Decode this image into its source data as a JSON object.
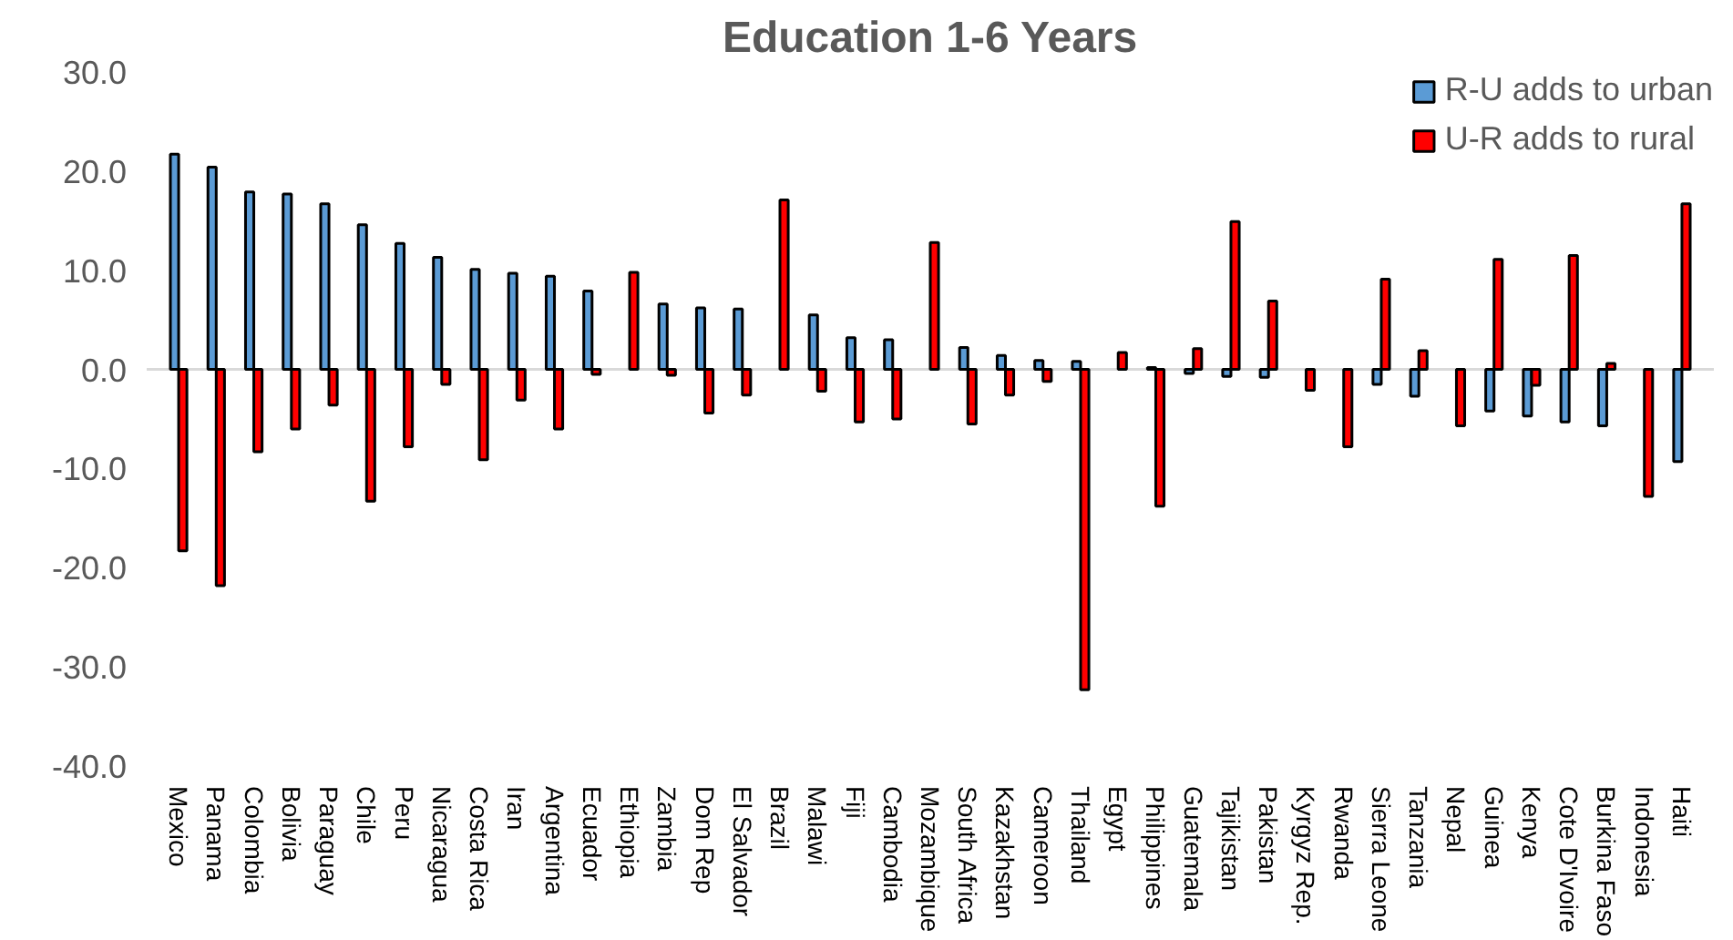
{
  "chart_data": {
    "type": "bar",
    "title": "Education 1-6 Years",
    "categories": [
      "Mexico",
      "Panama",
      "Colombia",
      "Bolivia",
      "Paraguay",
      "Chile",
      "Peru",
      "Nicaragua",
      "Costa Rica",
      "Iran",
      "Argentina",
      "Ecuador",
      "Ethiopia",
      "Zambia",
      "Dom Rep",
      "El Salvador",
      "Brazil",
      "Malawi",
      "Fiji",
      "Cambodia",
      "Mozambique",
      "South Africa",
      "Kazakhstan",
      "Cameroon",
      "Thailand",
      "Egypt",
      "Philippines",
      "Guatemala",
      "Tajikistan",
      "Pakistan",
      "Kyrgyz Rep.",
      "Rwanda",
      "Sierra Leone",
      "Tanzania",
      "Nepal",
      "Guinea",
      "Kenya",
      "Cote D'Ivoire",
      "Burkina Faso",
      "Indonesia",
      "Haiti"
    ],
    "series": [
      {
        "name": "R-U adds to urban",
        "color": "#5b9bd5",
        "values": [
          21.7,
          20.4,
          17.9,
          17.7,
          16.7,
          14.6,
          12.7,
          11.3,
          10.1,
          9.7,
          9.4,
          7.9,
          null,
          6.6,
          6.2,
          6.1,
          null,
          5.5,
          3.2,
          3.0,
          null,
          2.2,
          1.4,
          0.9,
          0.8,
          null,
          0.2,
          -0.4,
          -0.7,
          -0.8,
          null,
          null,
          -1.5,
          -2.7,
          null,
          -4.2,
          -4.7,
          -5.3,
          -5.7,
          null,
          -9.3
        ]
      },
      {
        "name": "U-R adds to rural",
        "color": "#ff0000",
        "values": [
          -18.3,
          -21.8,
          -8.3,
          -6.0,
          -3.6,
          -13.3,
          -7.8,
          -1.5,
          -9.1,
          -3.1,
          -6.0,
          -0.5,
          9.8,
          -0.6,
          -4.4,
          -2.6,
          17.1,
          -2.2,
          -5.3,
          -5.0,
          12.8,
          -5.5,
          -2.6,
          -1.2,
          -32.3,
          1.7,
          -13.8,
          2.1,
          14.9,
          6.9,
          -2.1,
          -7.8,
          9.1,
          1.9,
          -5.7,
          11.1,
          -1.6,
          11.5,
          0.6,
          -12.8,
          16.7
        ]
      }
    ],
    "ylim": [
      -40,
      30
    ],
    "yticks": [
      {
        "value": -40,
        "label": "-40.0"
      },
      {
        "value": -30,
        "label": "-30.0"
      },
      {
        "value": -20,
        "label": "-20.0"
      },
      {
        "value": -10,
        "label": "-10.0"
      },
      {
        "value": 0,
        "label": "0.0"
      },
      {
        "value": 10,
        "label": "10.0"
      },
      {
        "value": 20,
        "label": "20.0"
      },
      {
        "value": 30,
        "label": "30.0"
      }
    ],
    "ref_lines": [
      {
        "axis": "y",
        "value": 0,
        "color": "#d9d9d9"
      }
    ],
    "grid": false,
    "legend": "top right"
  }
}
